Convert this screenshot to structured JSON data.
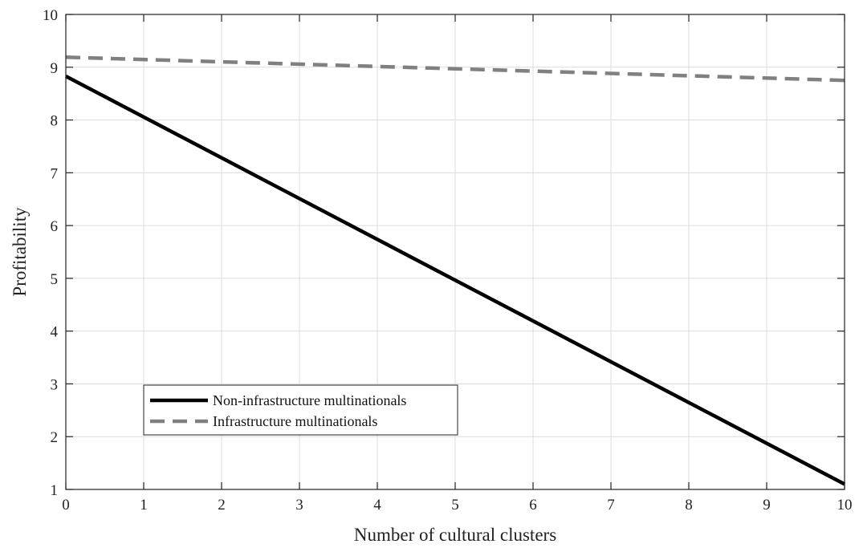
{
  "chart_data": {
    "type": "line",
    "xlabel": "Number of cultural clusters",
    "ylabel": "Profitability",
    "xlim": [
      0,
      10
    ],
    "ylim": [
      1,
      10
    ],
    "xticks": [
      "0",
      "1",
      "2",
      "3",
      "4",
      "5",
      "6",
      "7",
      "8",
      "9",
      "10"
    ],
    "yticks": [
      "1",
      "2",
      "3",
      "4",
      "5",
      "6",
      "7",
      "8",
      "9",
      "10"
    ],
    "grid": true,
    "legend_position": "lower-left",
    "series": [
      {
        "name": "Non-infrastructure multinationals",
        "x": [
          0,
          10
        ],
        "y": [
          8.83,
          1.1
        ],
        "color": "#000000",
        "style": "solid"
      },
      {
        "name": "Infrastructure multinationals",
        "x": [
          0,
          10
        ],
        "y": [
          9.19,
          8.75
        ],
        "color": "#808080",
        "style": "dashed"
      }
    ]
  }
}
